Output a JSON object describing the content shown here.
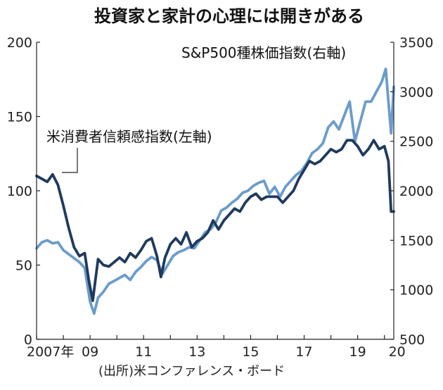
{
  "chart_data": {
    "type": "line",
    "title": "投資家と家計の心理には開きがある",
    "source": "(出所)米コンファレンス・ボード",
    "x_labels": [
      "2007年",
      "09",
      "11",
      "13",
      "15",
      "17",
      "19",
      "20"
    ],
    "x_label_years": [
      2007,
      2009,
      2011,
      2013,
      2015,
      2017,
      2019,
      2020
    ],
    "x_range": [
      2007.0,
      2020.35
    ],
    "y_left": {
      "ticks": [
        "0",
        "50",
        "100",
        "150",
        "200"
      ],
      "range": [
        0,
        200
      ]
    },
    "y_right": {
      "ticks": [
        "500",
        "1000",
        "1500",
        "2000",
        "2500",
        "3000",
        "3500"
      ],
      "range": [
        500,
        3500
      ]
    },
    "colors": {
      "consumer_confidence": "#1f3a5f",
      "sp500": "#6b9ccb",
      "axis": "#222222"
    },
    "series": [
      {
        "name": "米消費者信頼感指数(左軸)",
        "axis": "left",
        "x": [
          2007.0,
          2007.2,
          2007.4,
          2007.6,
          2007.8,
          2008.0,
          2008.2,
          2008.4,
          2008.6,
          2008.8,
          2008.95,
          2009.1,
          2009.3,
          2009.5,
          2009.7,
          2009.9,
          2010.1,
          2010.3,
          2010.5,
          2010.7,
          2010.9,
          2011.1,
          2011.3,
          2011.5,
          2011.65,
          2011.8,
          2012.0,
          2012.2,
          2012.4,
          2012.6,
          2012.8,
          2013.0,
          2013.2,
          2013.4,
          2013.6,
          2013.8,
          2014.0,
          2014.2,
          2014.4,
          2014.6,
          2014.8,
          2015.0,
          2015.2,
          2015.4,
          2015.6,
          2015.8,
          2016.0,
          2016.2,
          2016.4,
          2016.6,
          2016.8,
          2017.0,
          2017.2,
          2017.4,
          2017.6,
          2017.8,
          2018.0,
          2018.2,
          2018.4,
          2018.6,
          2018.8,
          2019.0,
          2019.2,
          2019.4,
          2019.6,
          2019.8,
          2020.0,
          2020.15,
          2020.25,
          2020.35
        ],
        "values": [
          110,
          108,
          106,
          111,
          104,
          90,
          75,
          62,
          56,
          58,
          40,
          26,
          54,
          50,
          49,
          52,
          55,
          52,
          58,
          55,
          60,
          66,
          68,
          56,
          42,
          55,
          64,
          68,
          64,
          72,
          62,
          66,
          68,
          72,
          80,
          74,
          80,
          84,
          88,
          86,
          92,
          96,
          98,
          94,
          96,
          96,
          96,
          92,
          96,
          100,
          108,
          114,
          120,
          118,
          120,
          124,
          128,
          126,
          128,
          134,
          134,
          130,
          124,
          128,
          134,
          128,
          130,
          120,
          86,
          86
        ]
      },
      {
        "name": "S&P500種株価指数(右軸)",
        "axis": "right",
        "x": [
          2007.0,
          2007.2,
          2007.4,
          2007.6,
          2007.8,
          2008.0,
          2008.2,
          2008.4,
          2008.6,
          2008.8,
          2009.0,
          2009.15,
          2009.3,
          2009.5,
          2009.7,
          2009.9,
          2010.1,
          2010.3,
          2010.5,
          2010.7,
          2010.9,
          2011.1,
          2011.3,
          2011.5,
          2011.7,
          2011.9,
          2012.1,
          2012.3,
          2012.5,
          2012.7,
          2012.9,
          2013.1,
          2013.3,
          2013.5,
          2013.7,
          2013.9,
          2014.1,
          2014.3,
          2014.5,
          2014.7,
          2014.9,
          2015.1,
          2015.3,
          2015.5,
          2015.7,
          2015.9,
          2016.1,
          2016.3,
          2016.5,
          2016.7,
          2016.9,
          2017.1,
          2017.3,
          2017.5,
          2017.7,
          2017.9,
          2018.1,
          2018.3,
          2018.5,
          2018.7,
          2018.9,
          2019.1,
          2019.3,
          2019.5,
          2019.7,
          2019.9,
          2020.05,
          2020.15,
          2020.25,
          2020.35
        ],
        "values": [
          1420,
          1480,
          1500,
          1470,
          1480,
          1400,
          1360,
          1320,
          1280,
          1220,
          880,
          760,
          920,
          980,
          1060,
          1090,
          1120,
          1150,
          1100,
          1180,
          1230,
          1290,
          1330,
          1300,
          1160,
          1250,
          1340,
          1380,
          1400,
          1430,
          1420,
          1500,
          1580,
          1610,
          1680,
          1800,
          1830,
          1880,
          1920,
          1980,
          2000,
          2050,
          2080,
          2100,
          1970,
          2040,
          1940,
          2040,
          2100,
          2160,
          2200,
          2280,
          2380,
          2420,
          2480,
          2640,
          2700,
          2620,
          2760,
          2900,
          2500,
          2700,
          2900,
          2900,
          3000,
          3100,
          3230,
          2900,
          2580,
          3050
        ]
      }
    ],
    "series_labels": {
      "consumer_confidence": "米消費者信頼感指数(左軸)",
      "sp500": "S&P500種株価指数(右軸)"
    }
  }
}
